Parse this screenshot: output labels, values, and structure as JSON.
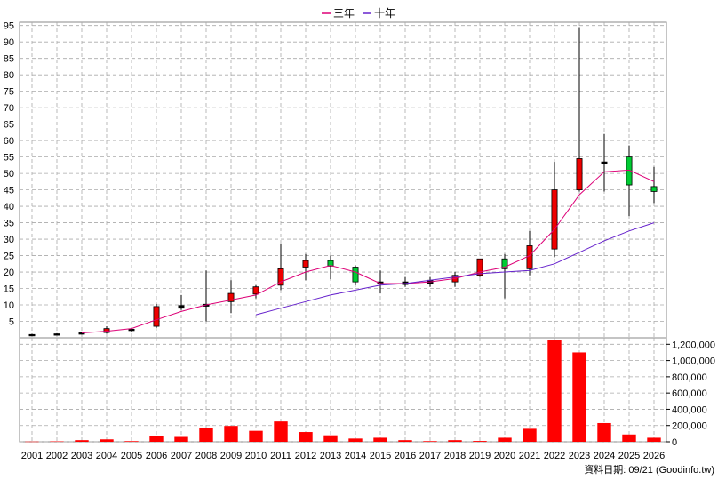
{
  "legend": [
    {
      "label": "三年",
      "color": "#dd0077"
    },
    {
      "label": "十年",
      "color": "#6622cc"
    }
  ],
  "credit": "資料日期: 09/21 (Goodinfo.tw)",
  "chart_data": [
    {
      "type": "candlestick",
      "title": "",
      "x": [
        "2001",
        "2002",
        "2003",
        "2004",
        "2005",
        "2006",
        "2007",
        "2008",
        "2009",
        "2010",
        "2011",
        "2012",
        "2013",
        "2014",
        "2015",
        "2016",
        "2017",
        "2018",
        "2019",
        "2020",
        "2021",
        "2022",
        "2023",
        "2024",
        "2025",
        "2026"
      ],
      "ylim": [
        0,
        96
      ],
      "yticks": [
        5,
        10,
        15,
        20,
        25,
        30,
        35,
        40,
        45,
        50,
        55,
        60,
        65,
        70,
        75,
        80,
        85,
        90,
        95
      ],
      "grid": true,
      "candles": [
        {
          "open": 0.8,
          "close": 1.0,
          "high": 1.2,
          "low": 0.6,
          "color": "black"
        },
        {
          "open": 1.1,
          "close": 1.2,
          "high": 1.4,
          "low": 0.9,
          "color": "black"
        },
        {
          "open": 1.3,
          "close": 1.5,
          "high": 1.8,
          "low": 1.0,
          "color": "black"
        },
        {
          "open": 1.6,
          "close": 2.8,
          "high": 3.5,
          "low": 1.3,
          "color": "red"
        },
        {
          "open": 2.2,
          "close": 2.6,
          "high": 3.0,
          "low": 1.9,
          "color": "black"
        },
        {
          "open": 3.5,
          "close": 9.5,
          "high": 10.3,
          "low": 3.0,
          "color": "red"
        },
        {
          "open": 9.0,
          "close": 9.8,
          "high": 13.0,
          "low": 8.5,
          "color": "black"
        },
        {
          "open": 9.6,
          "close": 10.2,
          "high": 20.5,
          "low": 5.0,
          "color": "black"
        },
        {
          "open": 11.0,
          "close": 13.5,
          "high": 17.5,
          "low": 7.5,
          "color": "red"
        },
        {
          "open": 13.3,
          "close": 15.5,
          "high": 16.0,
          "low": 12.0,
          "color": "red"
        },
        {
          "open": 16.0,
          "close": 21.0,
          "high": 28.5,
          "low": 14.5,
          "color": "red"
        },
        {
          "open": 21.5,
          "close": 23.5,
          "high": 25.5,
          "low": 17.5,
          "color": "red"
        },
        {
          "open": 23.5,
          "close": 21.8,
          "high": 25.0,
          "low": 17.8,
          "color": "green"
        },
        {
          "open": 21.5,
          "close": 17.0,
          "high": 22.0,
          "low": 16.0,
          "color": "green"
        },
        {
          "open": 17.0,
          "close": 16.5,
          "high": 20.5,
          "low": 13.5,
          "color": "black"
        },
        {
          "open": 16.2,
          "close": 17.0,
          "high": 18.5,
          "low": 15.5,
          "color": "black"
        },
        {
          "open": 17.5,
          "close": 16.5,
          "high": 18.5,
          "low": 15.5,
          "color": "black"
        },
        {
          "open": 17.0,
          "close": 19.0,
          "high": 20.0,
          "low": 15.5,
          "color": "red"
        },
        {
          "open": 19.0,
          "close": 24.0,
          "high": 24.0,
          "low": 18.5,
          "color": "red"
        },
        {
          "open": 24.0,
          "close": 21.0,
          "high": 25.5,
          "low": 12.0,
          "color": "green"
        },
        {
          "open": 21.0,
          "close": 28.0,
          "high": 32.5,
          "low": 19.0,
          "color": "red"
        },
        {
          "open": 27.0,
          "close": 45.0,
          "high": 53.5,
          "low": 24.5,
          "color": "red"
        },
        {
          "open": 45.0,
          "close": 54.5,
          "high": 94.5,
          "low": 44.5,
          "color": "red"
        },
        {
          "open": 53.5,
          "close": 53.3,
          "high": 62.0,
          "low": 44.5,
          "color": "black"
        },
        {
          "open": 55.0,
          "close": 46.5,
          "high": 58.5,
          "low": 37.0,
          "color": "green"
        },
        {
          "open": 46.0,
          "close": 44.5,
          "high": 52.0,
          "low": 41.0,
          "color": "green"
        }
      ],
      "series": [
        {
          "name": "三年",
          "color": "#dd0077",
          "values": [
            null,
            null,
            1.5,
            2.0,
            2.8,
            5.5,
            8.0,
            10.0,
            11.5,
            13.0,
            17.0,
            20.0,
            22.0,
            20.0,
            16.5,
            16.5,
            17.0,
            18.0,
            20.0,
            21.5,
            25.0,
            33.0,
            43.5,
            50.5,
            51.0,
            47.5
          ]
        },
        {
          "name": "十年",
          "color": "#6622cc",
          "values": [
            null,
            null,
            null,
            null,
            null,
            null,
            null,
            null,
            null,
            7.0,
            9.0,
            11.0,
            13.0,
            14.5,
            16.0,
            16.5,
            17.5,
            18.5,
            19.5,
            20.0,
            20.5,
            22.5,
            26.0,
            29.5,
            32.5,
            35.0
          ]
        }
      ]
    },
    {
      "type": "bar",
      "title": "",
      "categories": [
        "2001",
        "2002",
        "2003",
        "2004",
        "2005",
        "2006",
        "2007",
        "2008",
        "2009",
        "2010",
        "2011",
        "2012",
        "2013",
        "2014",
        "2015",
        "2016",
        "2017",
        "2018",
        "2019",
        "2020",
        "2021",
        "2022",
        "2023",
        "2024",
        "2025",
        "2026"
      ],
      "values": [
        3000,
        5000,
        20000,
        30000,
        8000,
        70000,
        60000,
        170000,
        195000,
        135000,
        250000,
        120000,
        80000,
        40000,
        50000,
        20000,
        8000,
        20000,
        10000,
        50000,
        160000,
        1250000,
        1100000,
        230000,
        90000,
        50000
      ],
      "ylim": [
        0,
        1280000
      ],
      "yticks": [
        "0",
        "200,000",
        "400,000",
        "600,000",
        "800,000",
        "1,000,000",
        "1,200,000"
      ],
      "color": "#ff0000"
    }
  ]
}
